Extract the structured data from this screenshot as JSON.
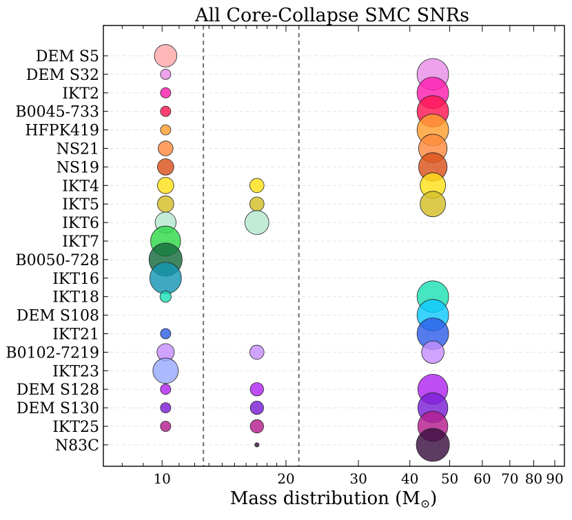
{
  "chart_data": {
    "type": "scatter",
    "title": "All Core-Collapse SMC SNRs",
    "xlabel": "Mass distribution (M",
    "xlabel_symbol": "⊙",
    "xlabel_close": ")",
    "x_scale": "log",
    "xlim": [
      7.2,
      95
    ],
    "x_ticks": [
      {
        "value": 10,
        "label": "10"
      },
      {
        "value": 20,
        "label": "20"
      },
      {
        "value": 30,
        "label": "30"
      },
      {
        "value": 40,
        "label": "40"
      },
      {
        "value": 50,
        "label": "50"
      },
      {
        "value": 60,
        "label": "60"
      },
      {
        "value": 70,
        "label": "70"
      },
      {
        "value": 80,
        "label": "80"
      },
      {
        "value": 90,
        "label": "90"
      }
    ],
    "minor_x_ticks": [
      8,
      9,
      11,
      12,
      13,
      14,
      15,
      16,
      17,
      18,
      19
    ],
    "vlines": [
      12.6,
      21.5
    ],
    "grid": "horizontal-dashed",
    "categories": [
      "DEM S5",
      "DEM S32",
      "IKT2",
      "B0045-733",
      "HFPK419",
      "NS21",
      "NS19",
      "IKT4",
      "IKT5",
      "IKT6",
      "IKT7",
      "B0050-728",
      "IKT16",
      "IKT18",
      "DEM S108",
      "IKT21",
      "B0102-7219",
      "IKT23",
      "DEM S128",
      "DEM S130",
      "IKT25",
      "N83C"
    ],
    "colors": [
      "#ffa8a8",
      "#e88fe8",
      "#ff1fae",
      "#ff1650",
      "#ff9f2e",
      "#ff8a40",
      "#d9521c",
      "#ffe01a",
      "#d4be28",
      "#b4e8cf",
      "#30d84b",
      "#166b3e",
      "#1596b3",
      "#1fe0b5",
      "#10c8ff",
      "#2f5ee8",
      "#c58fff",
      "#99aaff",
      "#b026f0",
      "#7a1fd6",
      "#b41f8f",
      "#3a1040"
    ],
    "points": [
      {
        "name": "DEM S5",
        "group": 0,
        "x": 10.2,
        "size": 0.65
      },
      {
        "name": "DEM S32",
        "group": 1,
        "x": 10.2,
        "size": 0.25
      },
      {
        "name": "DEM S32",
        "group": 1,
        "x": 45.5,
        "size": 0.95
      },
      {
        "name": "IKT2",
        "group": 2,
        "x": 10.2,
        "size": 0.25
      },
      {
        "name": "IKT2",
        "group": 2,
        "x": 45.5,
        "size": 0.95
      },
      {
        "name": "B0045-733",
        "group": 3,
        "x": 10.2,
        "size": 0.25
      },
      {
        "name": "B0045-733",
        "group": 3,
        "x": 45.5,
        "size": 0.95
      },
      {
        "name": "HFPK419",
        "group": 4,
        "x": 10.2,
        "size": 0.25
      },
      {
        "name": "HFPK419",
        "group": 4,
        "x": 45.5,
        "size": 0.95
      },
      {
        "name": "NS21",
        "group": 5,
        "x": 10.2,
        "size": 0.4
      },
      {
        "name": "NS21",
        "group": 5,
        "x": 45.5,
        "size": 0.85
      },
      {
        "name": "NS19",
        "group": 6,
        "x": 10.2,
        "size": 0.45
      },
      {
        "name": "NS19",
        "group": 6,
        "x": 45.5,
        "size": 0.85
      },
      {
        "name": "IKT4",
        "group": 7,
        "x": 10.2,
        "size": 0.45
      },
      {
        "name": "IKT4",
        "group": 7,
        "x": 17.0,
        "size": 0.38
      },
      {
        "name": "IKT4",
        "group": 7,
        "x": 45.5,
        "size": 0.75
      },
      {
        "name": "IKT5",
        "group": 8,
        "x": 10.2,
        "size": 0.45
      },
      {
        "name": "IKT5",
        "group": 8,
        "x": 17.0,
        "size": 0.38
      },
      {
        "name": "IKT5",
        "group": 8,
        "x": 45.5,
        "size": 0.75
      },
      {
        "name": "IKT6",
        "group": 9,
        "x": 10.2,
        "size": 0.6
      },
      {
        "name": "IKT6",
        "group": 9,
        "x": 17.0,
        "size": 0.7
      },
      {
        "name": "IKT7",
        "group": 10,
        "x": 10.2,
        "size": 0.9
      },
      {
        "name": "B0050-728",
        "group": 11,
        "x": 10.2,
        "size": 1.0
      },
      {
        "name": "IKT16",
        "group": 12,
        "x": 10.2,
        "size": 0.95
      },
      {
        "name": "IKT18",
        "group": 13,
        "x": 10.2,
        "size": 0.28
      },
      {
        "name": "IKT18",
        "group": 13,
        "x": 45.5,
        "size": 0.95
      },
      {
        "name": "DEM S108",
        "group": 14,
        "x": 45.5,
        "size": 0.95
      },
      {
        "name": "IKT21",
        "group": 15,
        "x": 10.2,
        "size": 0.25
      },
      {
        "name": "IKT21",
        "group": 15,
        "x": 45.5,
        "size": 0.95
      },
      {
        "name": "B0102-7219",
        "group": 16,
        "x": 10.2,
        "size": 0.48
      },
      {
        "name": "B0102-7219",
        "group": 16,
        "x": 17.0,
        "size": 0.38
      },
      {
        "name": "B0102-7219",
        "group": 16,
        "x": 45.5,
        "size": 0.65
      },
      {
        "name": "IKT23",
        "group": 17,
        "x": 10.2,
        "size": 0.75
      },
      {
        "name": "DEM S128",
        "group": 18,
        "x": 10.2,
        "size": 0.25
      },
      {
        "name": "DEM S128",
        "group": 18,
        "x": 17.0,
        "size": 0.35
      },
      {
        "name": "DEM S128",
        "group": 18,
        "x": 45.5,
        "size": 0.9
      },
      {
        "name": "DEM S130",
        "group": 19,
        "x": 10.2,
        "size": 0.25
      },
      {
        "name": "DEM S130",
        "group": 19,
        "x": 17.0,
        "size": 0.35
      },
      {
        "name": "DEM S130",
        "group": 19,
        "x": 45.5,
        "size": 0.9
      },
      {
        "name": "IKT25",
        "group": 20,
        "x": 10.2,
        "size": 0.25
      },
      {
        "name": "IKT25",
        "group": 20,
        "x": 17.0,
        "size": 0.35
      },
      {
        "name": "IKT25",
        "group": 20,
        "x": 45.5,
        "size": 0.9
      },
      {
        "name": "N83C",
        "group": 21,
        "x": 17.0,
        "size": 0.05
      },
      {
        "name": "N83C",
        "group": 21,
        "x": 45.5,
        "size": 1.0
      }
    ]
  }
}
